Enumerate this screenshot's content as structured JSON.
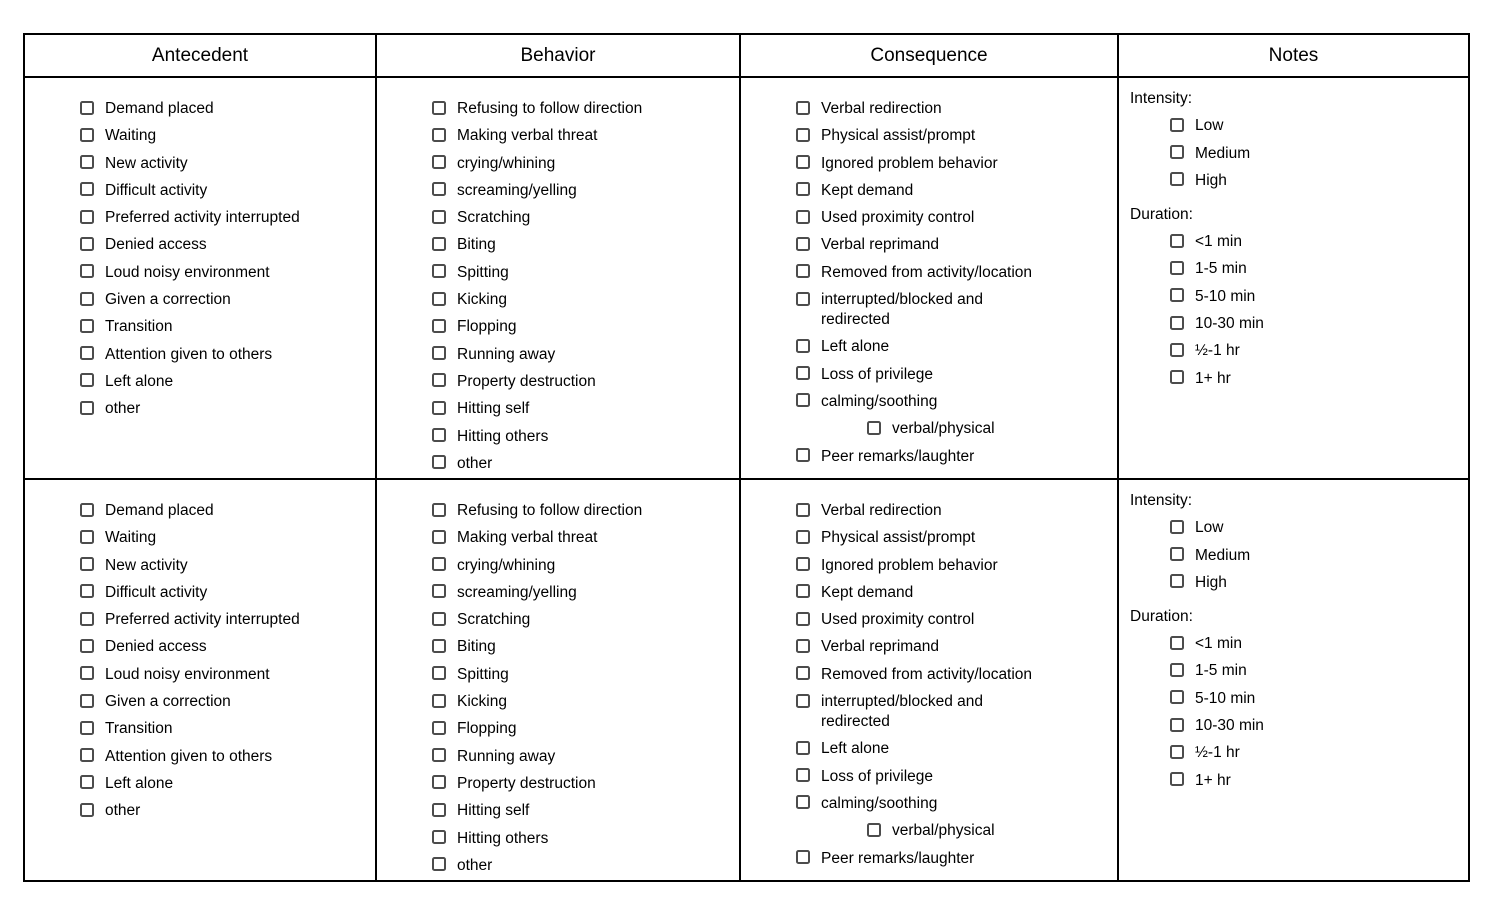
{
  "table": {
    "headers": [
      "Antecedent",
      "Behavior",
      "Consequence",
      "Notes"
    ],
    "row_count": 2,
    "antecedent_items": [
      "Demand placed",
      "Waiting",
      "New activity",
      "Difficult activity",
      "Preferred activity interrupted",
      "Denied access",
      "Loud noisy environment",
      "Given a correction",
      "Transition",
      "Attention given to others",
      "Left alone",
      "other"
    ],
    "behavior_items": [
      "Refusing to follow direction",
      "Making verbal threat",
      "crying/whining",
      "screaming/yelling",
      "Scratching",
      "Biting",
      "Spitting",
      "Kicking",
      "Flopping",
      "Running away",
      "Property destruction",
      "Hitting self",
      "Hitting others",
      "other"
    ],
    "consequence_items": [
      {
        "label": "Verbal redirection"
      },
      {
        "label": "Physical assist/prompt"
      },
      {
        "label": "Ignored problem behavior"
      },
      {
        "label": "Kept demand"
      },
      {
        "label": "Used proximity control"
      },
      {
        "label": "Verbal reprimand"
      },
      {
        "label": "Removed from activity/location"
      },
      {
        "label": "interrupted/blocked and\nredirected"
      },
      {
        "label": "Left alone"
      },
      {
        "label": "Loss of privilege"
      },
      {
        "label": "calming/soothing"
      },
      {
        "label": "verbal/physical",
        "sub": true
      },
      {
        "label": "Peer remarks/laughter"
      }
    ],
    "notes": {
      "intensity_label": "Intensity:",
      "intensity_options": [
        "Low",
        "Medium",
        "High"
      ],
      "duration_label": "Duration:",
      "duration_options": [
        "<1 min",
        "1-5 min",
        "5-10 min",
        "10-30 min",
        "½-1 hr",
        "1+ hr"
      ]
    }
  },
  "colors": {
    "table_border": "#000000",
    "checkbox_border": "#4c4c4c",
    "text": "#000000",
    "background": "#ffffff"
  }
}
